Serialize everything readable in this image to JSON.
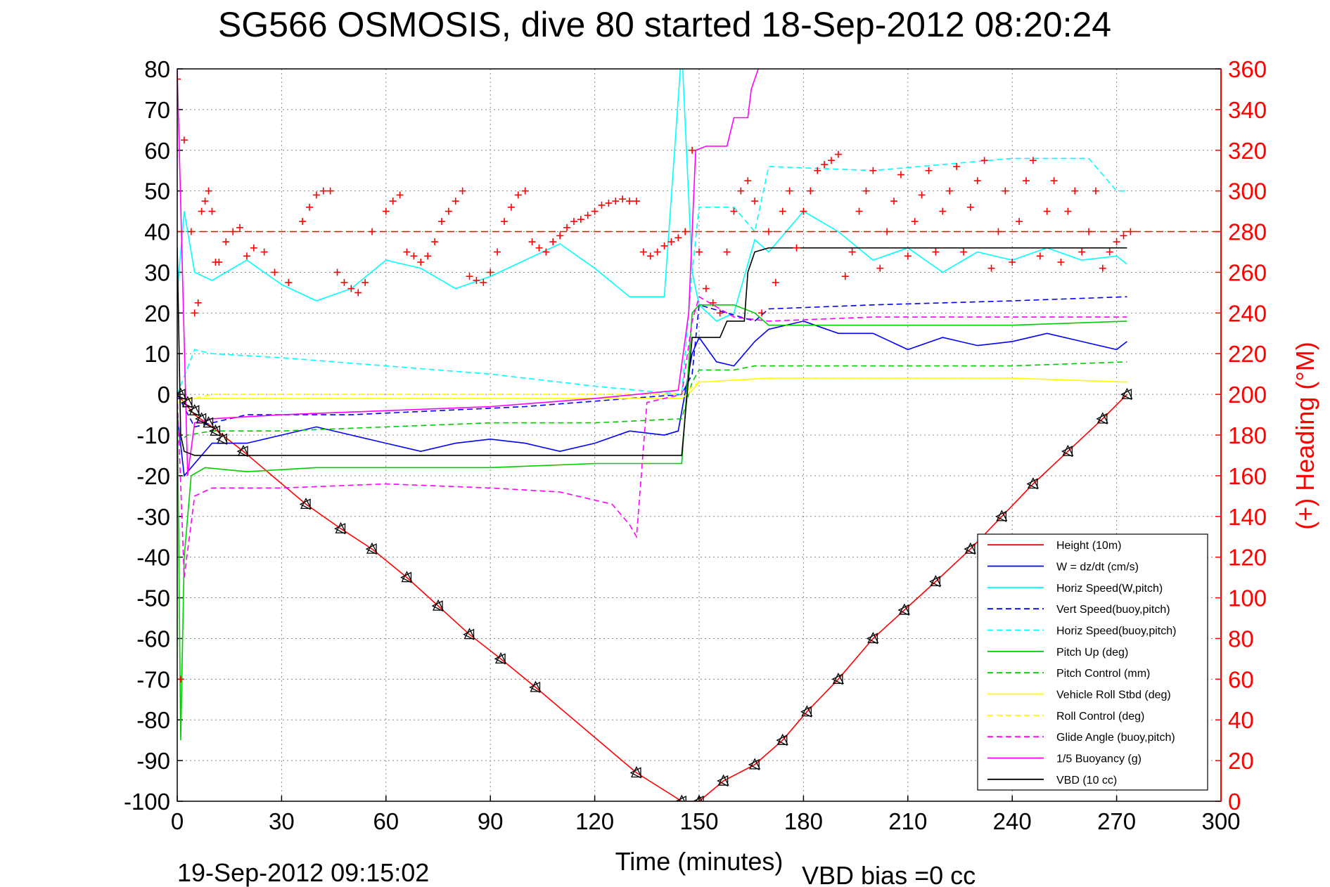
{
  "chart_data": {
    "type": "line",
    "title": "SG566 OSMOSIS, dive 80 started 18-Sep-2012 08:20:24",
    "xlabel": "Time (minutes)",
    "ylabel": "",
    "ylabel_right": "(+) Heading (°M)",
    "xlim": [
      0,
      300
    ],
    "ylim": [
      -100,
      80
    ],
    "ylim_right": [
      0,
      360
    ],
    "x_ticks": [
      0,
      30,
      60,
      90,
      120,
      150,
      180,
      210,
      240,
      270,
      300
    ],
    "y_ticks": [
      80,
      70,
      60,
      50,
      40,
      30,
      20,
      10,
      0,
      -10,
      -20,
      -30,
      -40,
      -50,
      -60,
      -70,
      -80,
      -90,
      -100
    ],
    "y_ticks_right": [
      360,
      340,
      320,
      300,
      280,
      260,
      240,
      220,
      200,
      180,
      160,
      140,
      120,
      100,
      80,
      60,
      40,
      20,
      0
    ],
    "grid": true,
    "legend_position": "bottom-right",
    "footer_left": "19-Sep-2012 09:15:02",
    "footer_right": "VBD bias =0 cc",
    "reference_heading": 280,
    "series": [
      {
        "name": "Height (10m)",
        "color": "#ff0000",
        "style": "solid",
        "x": [
          0,
          5,
          10,
          19,
          37,
          47,
          56,
          66,
          75,
          84,
          93,
          103,
          132,
          145,
          150,
          157,
          166,
          174,
          181,
          190,
          200,
          209,
          218,
          228,
          237,
          246,
          256,
          266,
          273
        ],
        "y": [
          0,
          -5,
          -8,
          -14,
          -27,
          -33,
          -38,
          -45,
          -52,
          -59,
          -65,
          -72,
          -93,
          -100,
          -100,
          -95,
          -91,
          -85,
          -78,
          -70,
          -60,
          -53,
          -46,
          -38,
          -30,
          -22,
          -14,
          -6,
          0
        ]
      },
      {
        "name": "W = dz/dt (cm/s)",
        "color": "#0000ff",
        "style": "solid",
        "x": [
          0,
          2,
          5,
          10,
          20,
          30,
          40,
          50,
          60,
          70,
          80,
          90,
          100,
          110,
          120,
          130,
          140,
          144,
          148,
          150,
          155,
          160,
          166,
          170,
          180,
          190,
          200,
          210,
          220,
          230,
          240,
          250,
          260,
          270,
          273
        ],
        "y": [
          -5,
          -20,
          -17,
          -12,
          -12,
          -10,
          -8,
          -10,
          -12,
          -14,
          -12,
          -11,
          -12,
          -14,
          -12,
          -9,
          -10,
          -9,
          10,
          14,
          8,
          7,
          13,
          16,
          18,
          15,
          15,
          11,
          14,
          12,
          13,
          15,
          13,
          11,
          13
        ]
      },
      {
        "name": "Horiz Speed(W,pitch)",
        "color": "#00ffff",
        "style": "solid",
        "x": [
          0,
          2,
          5,
          10,
          20,
          30,
          40,
          50,
          60,
          70,
          80,
          90,
          100,
          110,
          120,
          130,
          140,
          145,
          148,
          150,
          155,
          160,
          166,
          170,
          180,
          190,
          200,
          210,
          220,
          230,
          240,
          250,
          260,
          270,
          273
        ],
        "y": [
          25,
          45,
          30,
          28,
          33,
          27,
          23,
          26,
          33,
          31,
          26,
          29,
          33,
          37,
          31,
          24,
          24,
          85,
          30,
          22,
          18,
          20,
          38,
          35,
          45,
          40,
          33,
          36,
          30,
          35,
          33,
          36,
          33,
          34,
          32
        ]
      },
      {
        "name": "Vert Speed(buoy,pitch)",
        "color": "#0000ff",
        "style": "dashed",
        "x": [
          0,
          5,
          20,
          50,
          100,
          145,
          148,
          150,
          166,
          170,
          200,
          240,
          273
        ],
        "y": [
          0,
          -8,
          -5,
          -5,
          -3,
          0,
          5,
          22,
          18,
          21,
          22,
          23,
          24
        ]
      },
      {
        "name": "Horiz Speed(buoy,pitch)",
        "color": "#00ffff",
        "style": "dashed",
        "x": [
          0,
          5,
          10,
          30,
          60,
          90,
          120,
          145,
          148,
          150,
          160,
          166,
          170,
          200,
          240,
          262,
          270,
          273
        ],
        "y": [
          0,
          11,
          10,
          9,
          7,
          5,
          2,
          0,
          30,
          46,
          46,
          40,
          56,
          55,
          58,
          58,
          50,
          50
        ]
      },
      {
        "name": "Pitch Up (deg)",
        "color": "#00cc00",
        "style": "solid",
        "x": [
          0,
          1,
          2,
          4,
          8,
          20,
          40,
          60,
          90,
          120,
          145,
          148,
          150,
          160,
          166,
          170,
          200,
          240,
          273
        ],
        "y": [
          0,
          -85,
          -40,
          -20,
          -18,
          -19,
          -18,
          -18,
          -18,
          -17,
          -17,
          20,
          22,
          22,
          20,
          17,
          17,
          17,
          18
        ]
      },
      {
        "name": "Pitch Control (mm)",
        "color": "#00cc00",
        "style": "dashed",
        "x": [
          0,
          3,
          10,
          30,
          60,
          90,
          120,
          145,
          148,
          150,
          160,
          166,
          200,
          240,
          273
        ],
        "y": [
          -12,
          -10,
          -9,
          -9,
          -8,
          -7,
          -7,
          -6,
          3,
          6,
          6,
          7,
          7,
          7,
          8
        ]
      },
      {
        "name": "Vehicle Roll Stbd (deg)",
        "color": "#ffff00",
        "style": "solid",
        "x": [
          0,
          5,
          10,
          30,
          60,
          90,
          120,
          145,
          148,
          150,
          170,
          200,
          240,
          273
        ],
        "y": [
          -2,
          -1,
          -1,
          -1,
          -1,
          -1,
          -1,
          -1,
          1,
          3,
          4,
          4,
          4,
          3
        ]
      },
      {
        "name": "Roll Control (deg)",
        "color": "#ffff00",
        "style": "dashed",
        "x": [
          0,
          5,
          10,
          30,
          60,
          90,
          120,
          145,
          150,
          170,
          200,
          240,
          273
        ],
        "y": [
          -1,
          -1,
          0,
          0,
          0,
          0,
          0,
          0,
          3,
          4,
          4,
          4,
          3
        ]
      },
      {
        "name": "Glide Angle (buoy,pitch)",
        "color": "#ff00ff",
        "style": "dashed",
        "x": [
          0,
          2,
          5,
          10,
          30,
          60,
          90,
          110,
          125,
          130,
          132,
          135,
          145,
          148,
          150,
          160,
          170,
          200,
          240,
          273
        ],
        "y": [
          0,
          -45,
          -25,
          -23,
          -23,
          -22,
          -23,
          -24,
          -27,
          -32,
          -35,
          -2,
          0,
          18,
          24,
          19,
          18,
          19,
          19,
          19
        ]
      },
      {
        "name": "1/5 Buoyancy (g)",
        "color": "#ff00ff",
        "style": "solid",
        "x": [
          0,
          3,
          5,
          10,
          30,
          60,
          90,
          120,
          144,
          147,
          149,
          152,
          158,
          160,
          164,
          165,
          167
        ],
        "y": [
          80,
          -20,
          -7,
          -6,
          -5,
          -4,
          -3,
          -1,
          1,
          20,
          60,
          61,
          61,
          68,
          68,
          75,
          80
        ]
      },
      {
        "name": "VBD (10 cc)",
        "color": "#000000",
        "style": "solid",
        "x": [
          0,
          1,
          2,
          5,
          10,
          30,
          60,
          90,
          120,
          144,
          145,
          148,
          150,
          156,
          158,
          163,
          164,
          166,
          170,
          200,
          240,
          273
        ],
        "y": [
          36,
          -10,
          -14,
          -15,
          -15,
          -15,
          -15,
          -15,
          -15,
          -15,
          -15,
          14,
          14,
          14,
          18,
          18,
          30,
          35,
          36,
          36,
          36,
          36
        ]
      }
    ],
    "heading_points": {
      "name": "(+) Heading",
      "color": "#ff0000",
      "x": [
        0,
        1,
        2,
        4,
        5,
        6,
        7,
        8,
        9,
        10,
        11,
        12,
        14,
        16,
        18,
        20,
        22,
        25,
        28,
        32,
        36,
        38,
        40,
        42,
        44,
        46,
        48,
        50,
        52,
        54,
        56,
        60,
        62,
        64,
        66,
        68,
        70,
        72,
        74,
        76,
        78,
        80,
        82,
        84,
        86,
        88,
        90,
        92,
        94,
        96,
        98,
        100,
        102,
        104,
        106,
        108,
        110,
        112,
        114,
        116,
        118,
        120,
        122,
        124,
        126,
        128,
        130,
        132,
        134,
        136,
        138,
        140,
        142,
        144,
        146,
        148,
        150,
        152,
        154,
        156,
        158,
        160,
        162,
        164,
        166,
        168,
        170,
        172,
        174,
        176,
        178,
        180,
        182,
        184,
        186,
        188,
        190,
        192,
        194,
        196,
        198,
        200,
        202,
        204,
        206,
        208,
        210,
        212,
        214,
        216,
        218,
        220,
        222,
        224,
        226,
        228,
        230,
        232,
        234,
        236,
        238,
        240,
        242,
        244,
        246,
        248,
        250,
        252,
        254,
        256,
        258,
        260,
        262,
        264,
        266,
        268,
        270,
        272,
        274
      ],
      "y": [
        355,
        60,
        325,
        280,
        240,
        245,
        290,
        295,
        300,
        290,
        265,
        265,
        275,
        280,
        282,
        268,
        272,
        270,
        260,
        255,
        285,
        292,
        298,
        300,
        300,
        260,
        255,
        252,
        250,
        255,
        280,
        290,
        295,
        298,
        270,
        268,
        265,
        268,
        275,
        285,
        290,
        295,
        300,
        258,
        256,
        255,
        260,
        270,
        285,
        292,
        298,
        300,
        275,
        272,
        270,
        275,
        278,
        282,
        285,
        286,
        288,
        290,
        293,
        294,
        295,
        296,
        295,
        295,
        270,
        268,
        270,
        273,
        275,
        277,
        280,
        320,
        270,
        252,
        245,
        240,
        270,
        290,
        300,
        305,
        295,
        240,
        280,
        255,
        290,
        300,
        272,
        290,
        300,
        310,
        313,
        315,
        318,
        258,
        270,
        290,
        300,
        310,
        262,
        280,
        295,
        308,
        268,
        285,
        298,
        310,
        270,
        290,
        300,
        312,
        270,
        292,
        305,
        315,
        262,
        280,
        300,
        265,
        285,
        305,
        315,
        268,
        290,
        305,
        265,
        290,
        300,
        270,
        280,
        300,
        262,
        270,
        275,
        278,
        280
      ]
    },
    "depth_markers": {
      "x": [
        1,
        3,
        5,
        7,
        9,
        11,
        13,
        19,
        37,
        47,
        56,
        66,
        75,
        84,
        93,
        103,
        132,
        145,
        150,
        157,
        166,
        174,
        181,
        190,
        200,
        209,
        218,
        228,
        237,
        246,
        256,
        266,
        273
      ],
      "y": [
        0,
        -2,
        -4,
        -6,
        -7,
        -9,
        -11,
        -14,
        -27,
        -33,
        -38,
        -45,
        -52,
        -59,
        -65,
        -72,
        -93,
        -100,
        -100,
        -95,
        -91,
        -85,
        -78,
        -70,
        -60,
        -53,
        -46,
        -38,
        -30,
        -22,
        -14,
        -6,
        0
      ]
    }
  }
}
